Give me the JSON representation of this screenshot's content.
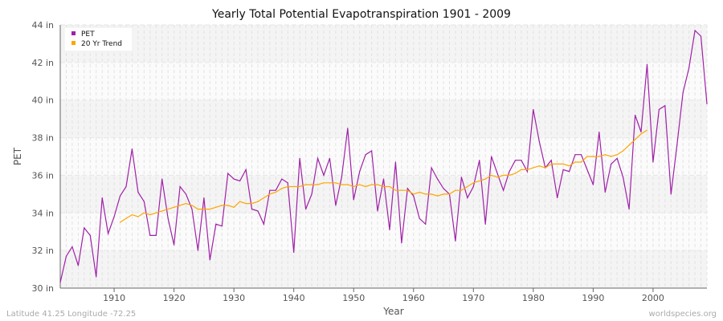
{
  "chart_data": {
    "type": "line",
    "title": "Yearly Total Potential Evapotranspiration 1901 - 2009",
    "xlabel": "Year",
    "ylabel": "PET",
    "xlim": [
      1901,
      2009
    ],
    "ylim": [
      30,
      44
    ],
    "x_ticks": [
      1910,
      1920,
      1930,
      1940,
      1950,
      1960,
      1970,
      1980,
      1990,
      2000
    ],
    "y_ticks": [
      30,
      32,
      34,
      36,
      38,
      40,
      42,
      44
    ],
    "y_tick_labels": [
      "30 in",
      "32 in",
      "34 in",
      "36 in",
      "38 in",
      "40 in",
      "42 in",
      "44 in"
    ],
    "grid": true,
    "legend_placement": "top-left",
    "series": [
      {
        "name": "PET",
        "color": "#a020a8",
        "x_start": 1901,
        "values": [
          30.3,
          31.7,
          32.2,
          31.2,
          33.2,
          32.8,
          30.6,
          34.8,
          32.9,
          33.8,
          34.9,
          35.4,
          37.4,
          35.1,
          34.6,
          32.8,
          32.8,
          35.8,
          33.7,
          32.3,
          35.4,
          35.0,
          34.2,
          32.0,
          34.8,
          31.5,
          33.4,
          33.3,
          36.1,
          35.8,
          35.7,
          36.3,
          34.2,
          34.1,
          33.4,
          35.2,
          35.2,
          35.8,
          35.6,
          31.9,
          36.9,
          34.2,
          35.0,
          36.9,
          36.0,
          36.9,
          34.4,
          35.9,
          38.5,
          34.7,
          36.2,
          37.1,
          37.3,
          34.1,
          35.8,
          33.1,
          36.7,
          32.4,
          35.3,
          34.9,
          33.7,
          33.4,
          36.4,
          35.8,
          35.3,
          35.0,
          32.5,
          35.9,
          34.8,
          35.4,
          36.8,
          33.4,
          37.0,
          36.1,
          35.2,
          36.2,
          36.8,
          36.8,
          36.2,
          39.5,
          37.8,
          36.4,
          36.8,
          34.8,
          36.3,
          36.2,
          37.1,
          37.1,
          36.3,
          35.5,
          38.3,
          35.1,
          36.6,
          36.9,
          35.9,
          34.2,
          39.2,
          38.3,
          41.9,
          36.7,
          39.5,
          39.7,
          35.0,
          37.6,
          40.4,
          41.7,
          43.7,
          43.4,
          39.8
        ]
      },
      {
        "name": "20 Yr Trend",
        "color": "#ffa500",
        "x_start": 1911,
        "values": [
          33.5,
          33.7,
          33.9,
          33.8,
          34.0,
          33.9,
          34.0,
          34.1,
          34.2,
          34.3,
          34.4,
          34.5,
          34.4,
          34.2,
          34.2,
          34.2,
          34.3,
          34.4,
          34.4,
          34.3,
          34.6,
          34.5,
          34.5,
          34.6,
          34.8,
          35.0,
          35.1,
          35.3,
          35.4,
          35.4,
          35.4,
          35.5,
          35.5,
          35.5,
          35.6,
          35.6,
          35.6,
          35.5,
          35.5,
          35.4,
          35.5,
          35.4,
          35.5,
          35.5,
          35.4,
          35.4,
          35.2,
          35.2,
          35.2,
          35.0,
          35.1,
          35.0,
          35.0,
          34.9,
          35.0,
          35.0,
          35.2,
          35.2,
          35.4,
          35.6,
          35.7,
          35.8,
          36.0,
          35.9,
          36.0,
          36.0,
          36.1,
          36.3,
          36.3,
          36.4,
          36.5,
          36.4,
          36.6,
          36.6,
          36.6,
          36.5,
          36.7,
          36.7,
          37.0,
          37.0,
          37.0,
          37.1,
          37.0,
          37.1,
          37.3,
          37.6,
          37.9,
          38.2,
          38.4
        ]
      }
    ]
  },
  "footer": {
    "location": "Latitude 41.25 Longitude -72.25",
    "credit": "worldspecies.org"
  }
}
